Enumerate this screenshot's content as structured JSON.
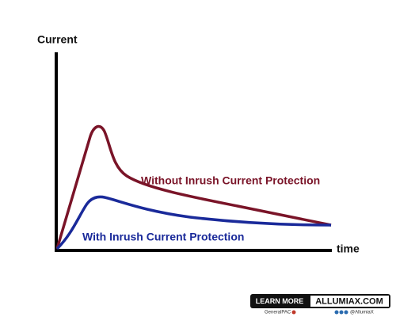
{
  "axes": {
    "y_label": "Current",
    "x_label": "time"
  },
  "curves": [
    {
      "label": "Without Inrush Current Protection"
    },
    {
      "label": "With Inrush Current Protection"
    }
  ],
  "footer": {
    "button": "LEARN MORE",
    "site": "ALLUMIAX.COM",
    "left_note": "GeneralPAC",
    "right_note": "@AllumiaX"
  }
}
